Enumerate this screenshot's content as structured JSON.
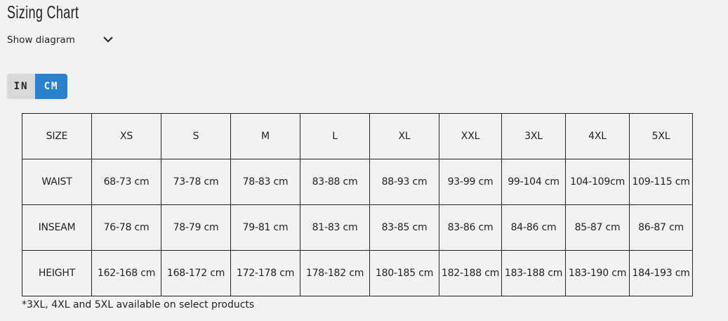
{
  "title": "Sizing Chart",
  "show_diagram": "Show diagram",
  "units": {
    "in": "IN",
    "cm": "CM",
    "selected": "CM",
    "accent": "#2a82cf"
  },
  "table": {
    "header": [
      "SIZE",
      "XS",
      "S",
      "M",
      "L",
      "XL",
      "XXL",
      "3XL",
      "4XL",
      "5XL"
    ],
    "rows": [
      [
        "WAIST",
        "68-73 cm",
        "73-78 cm",
        "78-83 cm",
        "83-88 cm",
        "88-93 cm",
        "93-99 cm",
        "99-104 cm",
        "104-109cm",
        "109-115 cm"
      ],
      [
        "INSEAM",
        "76-78 cm",
        "78-79 cm",
        "79-81 cm",
        "81-83 cm",
        "83-85 cm",
        "83-86 cm",
        "84-86 cm",
        "85-87 cm",
        "86-87 cm"
      ],
      [
        "HEIGHT",
        "162-168 cm",
        "168-172 cm",
        "172-178 cm",
        "178-182 cm",
        "180-185 cm",
        "182-188 cm",
        "183-188 cm",
        "183-190 cm",
        "184-193 cm"
      ]
    ]
  },
  "note": "*3XL, 4XL and 5XL available on select products"
}
